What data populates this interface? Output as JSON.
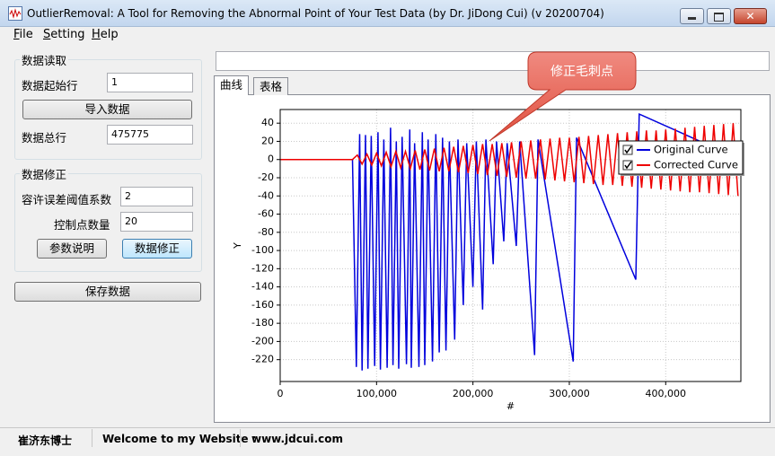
{
  "window": {
    "title": "OutlierRemoval: A Tool for Removing the Abnormal Point of Your Test Data (by Dr. JiDong Cui) (v 20200704)"
  },
  "menu": [
    "File",
    "Setting",
    "Help"
  ],
  "read_panel": {
    "title": "数据读取",
    "start_row_label": "数据起始行",
    "start_row_value": "1",
    "import_button": "导入数据",
    "total_rows_label": "数据总行",
    "total_rows_value": "475775"
  },
  "fix_panel": {
    "title": "数据修正",
    "tolerance_label": "容许误差阈值系数",
    "tolerance_value": "2",
    "control_points_label": "控制点数量",
    "control_points_value": "20",
    "help_button": "参数说明",
    "fix_button": "数据修正"
  },
  "save_button": "保存数据",
  "tabs": [
    "曲线",
    "表格"
  ],
  "callout": "修正毛刺点",
  "chart": {
    "type": "line",
    "xlabel": "#",
    "ylabel": "Y",
    "xlim": [
      0,
      478000
    ],
    "ylim": [
      -244,
      55
    ],
    "xticks": [
      0,
      {
        "value": 100000,
        "label": "100,000"
      },
      {
        "value": 200000,
        "label": "200,000"
      },
      {
        "value": 300000,
        "label": "300,000"
      },
      {
        "value": 400000,
        "label": "400,000"
      }
    ],
    "yticks": [
      40,
      20,
      0,
      -20,
      -40,
      -60,
      -80,
      -100,
      -120,
      -140,
      -160,
      -180,
      -200,
      -220
    ],
    "grid": true,
    "legend_position": "upper right",
    "series": [
      {
        "name": "Original Curve",
        "color": "#0000dd",
        "x": [
          0,
          75000,
          79000,
          82500,
          85000,
          88500,
          91000,
          94500,
          98000,
          101500,
          104000,
          107500,
          111000,
          114500,
          117000,
          120500,
          123000,
          126500,
          131000,
          134500,
          136000,
          139500,
          144000,
          147500,
          150000,
          153500,
          158000,
          161500,
          165000,
          168500,
          172000,
          175500,
          181000,
          184500,
          190000,
          193500,
          200000,
          203500,
          210000,
          213500,
          221000,
          224500,
          232000,
          235500,
          245000,
          248500,
          264000,
          267500,
          304000,
          307500,
          369000,
          372500,
          478000
        ],
        "values": [
          0,
          0,
          -228,
          28,
          -232,
          27,
          -230,
          26,
          -227,
          30,
          -231,
          22,
          -229,
          35,
          -226,
          20,
          -230,
          25,
          -225,
          33,
          -229,
          18,
          -228,
          30,
          -226,
          22,
          -222,
          28,
          -212,
          24,
          -210,
          20,
          -198,
          22,
          -160,
          18,
          -140,
          20,
          -165,
          22,
          -115,
          20,
          -90,
          18,
          -95,
          20,
          -215,
          22,
          -222,
          24,
          -132,
          50,
          0
        ]
      },
      {
        "name": "Corrected Curve",
        "color": "#ee0000",
        "x": [
          0,
          75000,
          80000,
          85000,
          90000,
          95000,
          100000,
          105000,
          110000,
          115000,
          120000,
          125000,
          130000,
          135000,
          140000,
          145000,
          150000,
          155000,
          160000,
          165000,
          170000,
          175000,
          180000,
          185000,
          190000,
          195000,
          200000,
          205000,
          210000,
          215000,
          220000,
          225000,
          230000,
          235000,
          240000,
          245000,
          250000,
          255000,
          260000,
          265000,
          270000,
          275000,
          280000,
          285000,
          290000,
          295000,
          300000,
          305000,
          310000,
          315000,
          320000,
          325000,
          330000,
          335000,
          340000,
          345000,
          350000,
          355000,
          360000,
          365000,
          370000,
          375000,
          380000,
          385000,
          390000,
          395000,
          400000,
          405000,
          410000,
          415000,
          420000,
          425000,
          430000,
          435000,
          440000,
          445000,
          450000,
          455000,
          460000,
          465000,
          470000,
          475000
        ],
        "values": [
          0,
          0,
          5,
          -5,
          6,
          -6,
          7,
          -7,
          8,
          -8,
          9,
          -9,
          9,
          -10,
          10,
          -11,
          11,
          -12,
          12,
          -13,
          13,
          -13,
          14,
          -14,
          15,
          -15,
          16,
          -16,
          17,
          -17,
          17,
          -18,
          18,
          -19,
          19,
          -20,
          20,
          -21,
          21,
          -21,
          22,
          -22,
          23,
          -23,
          24,
          -24,
          24,
          -25,
          25,
          -26,
          26,
          -27,
          27,
          -28,
          28,
          -28,
          29,
          -29,
          30,
          -30,
          31,
          -31,
          32,
          -32,
          32,
          -33,
          33,
          -34,
          34,
          -35,
          35,
          -36,
          36,
          -36,
          37,
          -37,
          38,
          -38,
          39,
          -39,
          40,
          -40
        ]
      }
    ]
  },
  "status": [
    "崔济东博士",
    "Welcome to my Website :",
    "www.jdcui.com"
  ]
}
